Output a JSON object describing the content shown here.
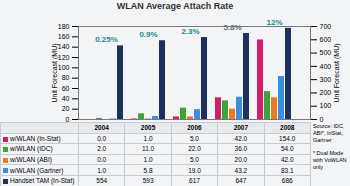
{
  "chart_data": {
    "type": "bar",
    "title": "WLAN Average Attach Rate",
    "categories": [
      "2004",
      "2005",
      "2006",
      "2007",
      "2008"
    ],
    "series": [
      {
        "name": "w/WLAN (In-Stat)",
        "color": "#d0206a",
        "values": [
          0,
          1,
          5,
          42,
          154
        ],
        "value_labels": [
          "0.0",
          "1.0",
          "5.0",
          "42.0",
          "154.0"
        ]
      },
      {
        "name": "w/WLAN (IDC)",
        "color": "#3aa63a",
        "values": [
          2,
          11,
          22,
          36,
          54
        ],
        "value_labels": [
          "2.0",
          "11.0",
          "22.0",
          "36.0",
          "54.0"
        ]
      },
      {
        "name": "w/WLAN (ABI)",
        "color": "#f07820",
        "values": [
          0,
          1,
          5,
          20,
          42
        ],
        "value_labels": [
          "0.0",
          "1.0",
          "5.0",
          "20.0",
          "42.0"
        ]
      },
      {
        "name": "w/WLAN (Gartner)",
        "color": "#3a8fe0",
        "values": [
          1,
          5.8,
          19,
          43.2,
          83.1
        ],
        "value_labels": [
          "1.0",
          "5.8",
          "19.0",
          "43.2",
          "83.1"
        ]
      },
      {
        "name": "Handset TAM (In-Stat)",
        "color": "#1f2f5e",
        "values": [
          554,
          593,
          617,
          647,
          686
        ],
        "axis": "y2"
      }
    ],
    "ylabel": "Unit Forecast (MU)",
    "y2label": "Unit Forecast (MU)",
    "ylim": [
      0,
      180
    ],
    "yticks": [
      0,
      20,
      40,
      60,
      80,
      100,
      120,
      140,
      160,
      180
    ],
    "y2lim": [
      0,
      700
    ],
    "y2ticks": [
      0,
      100,
      200,
      300,
      400,
      500,
      600,
      700
    ],
    "annotations": [
      {
        "category": "2004",
        "text": "0.25%"
      },
      {
        "category": "2005",
        "text": "0.9%"
      },
      {
        "category": "2006",
        "text": "2.3%"
      },
      {
        "category": "2007",
        "text": "5.8%"
      },
      {
        "category": "2008",
        "text": "12%"
      }
    ],
    "source": "Source: IDC, ABI*, InStat, Gartner",
    "footnote": "* Dual Mode with VoWLAN only",
    "grid": false
  }
}
